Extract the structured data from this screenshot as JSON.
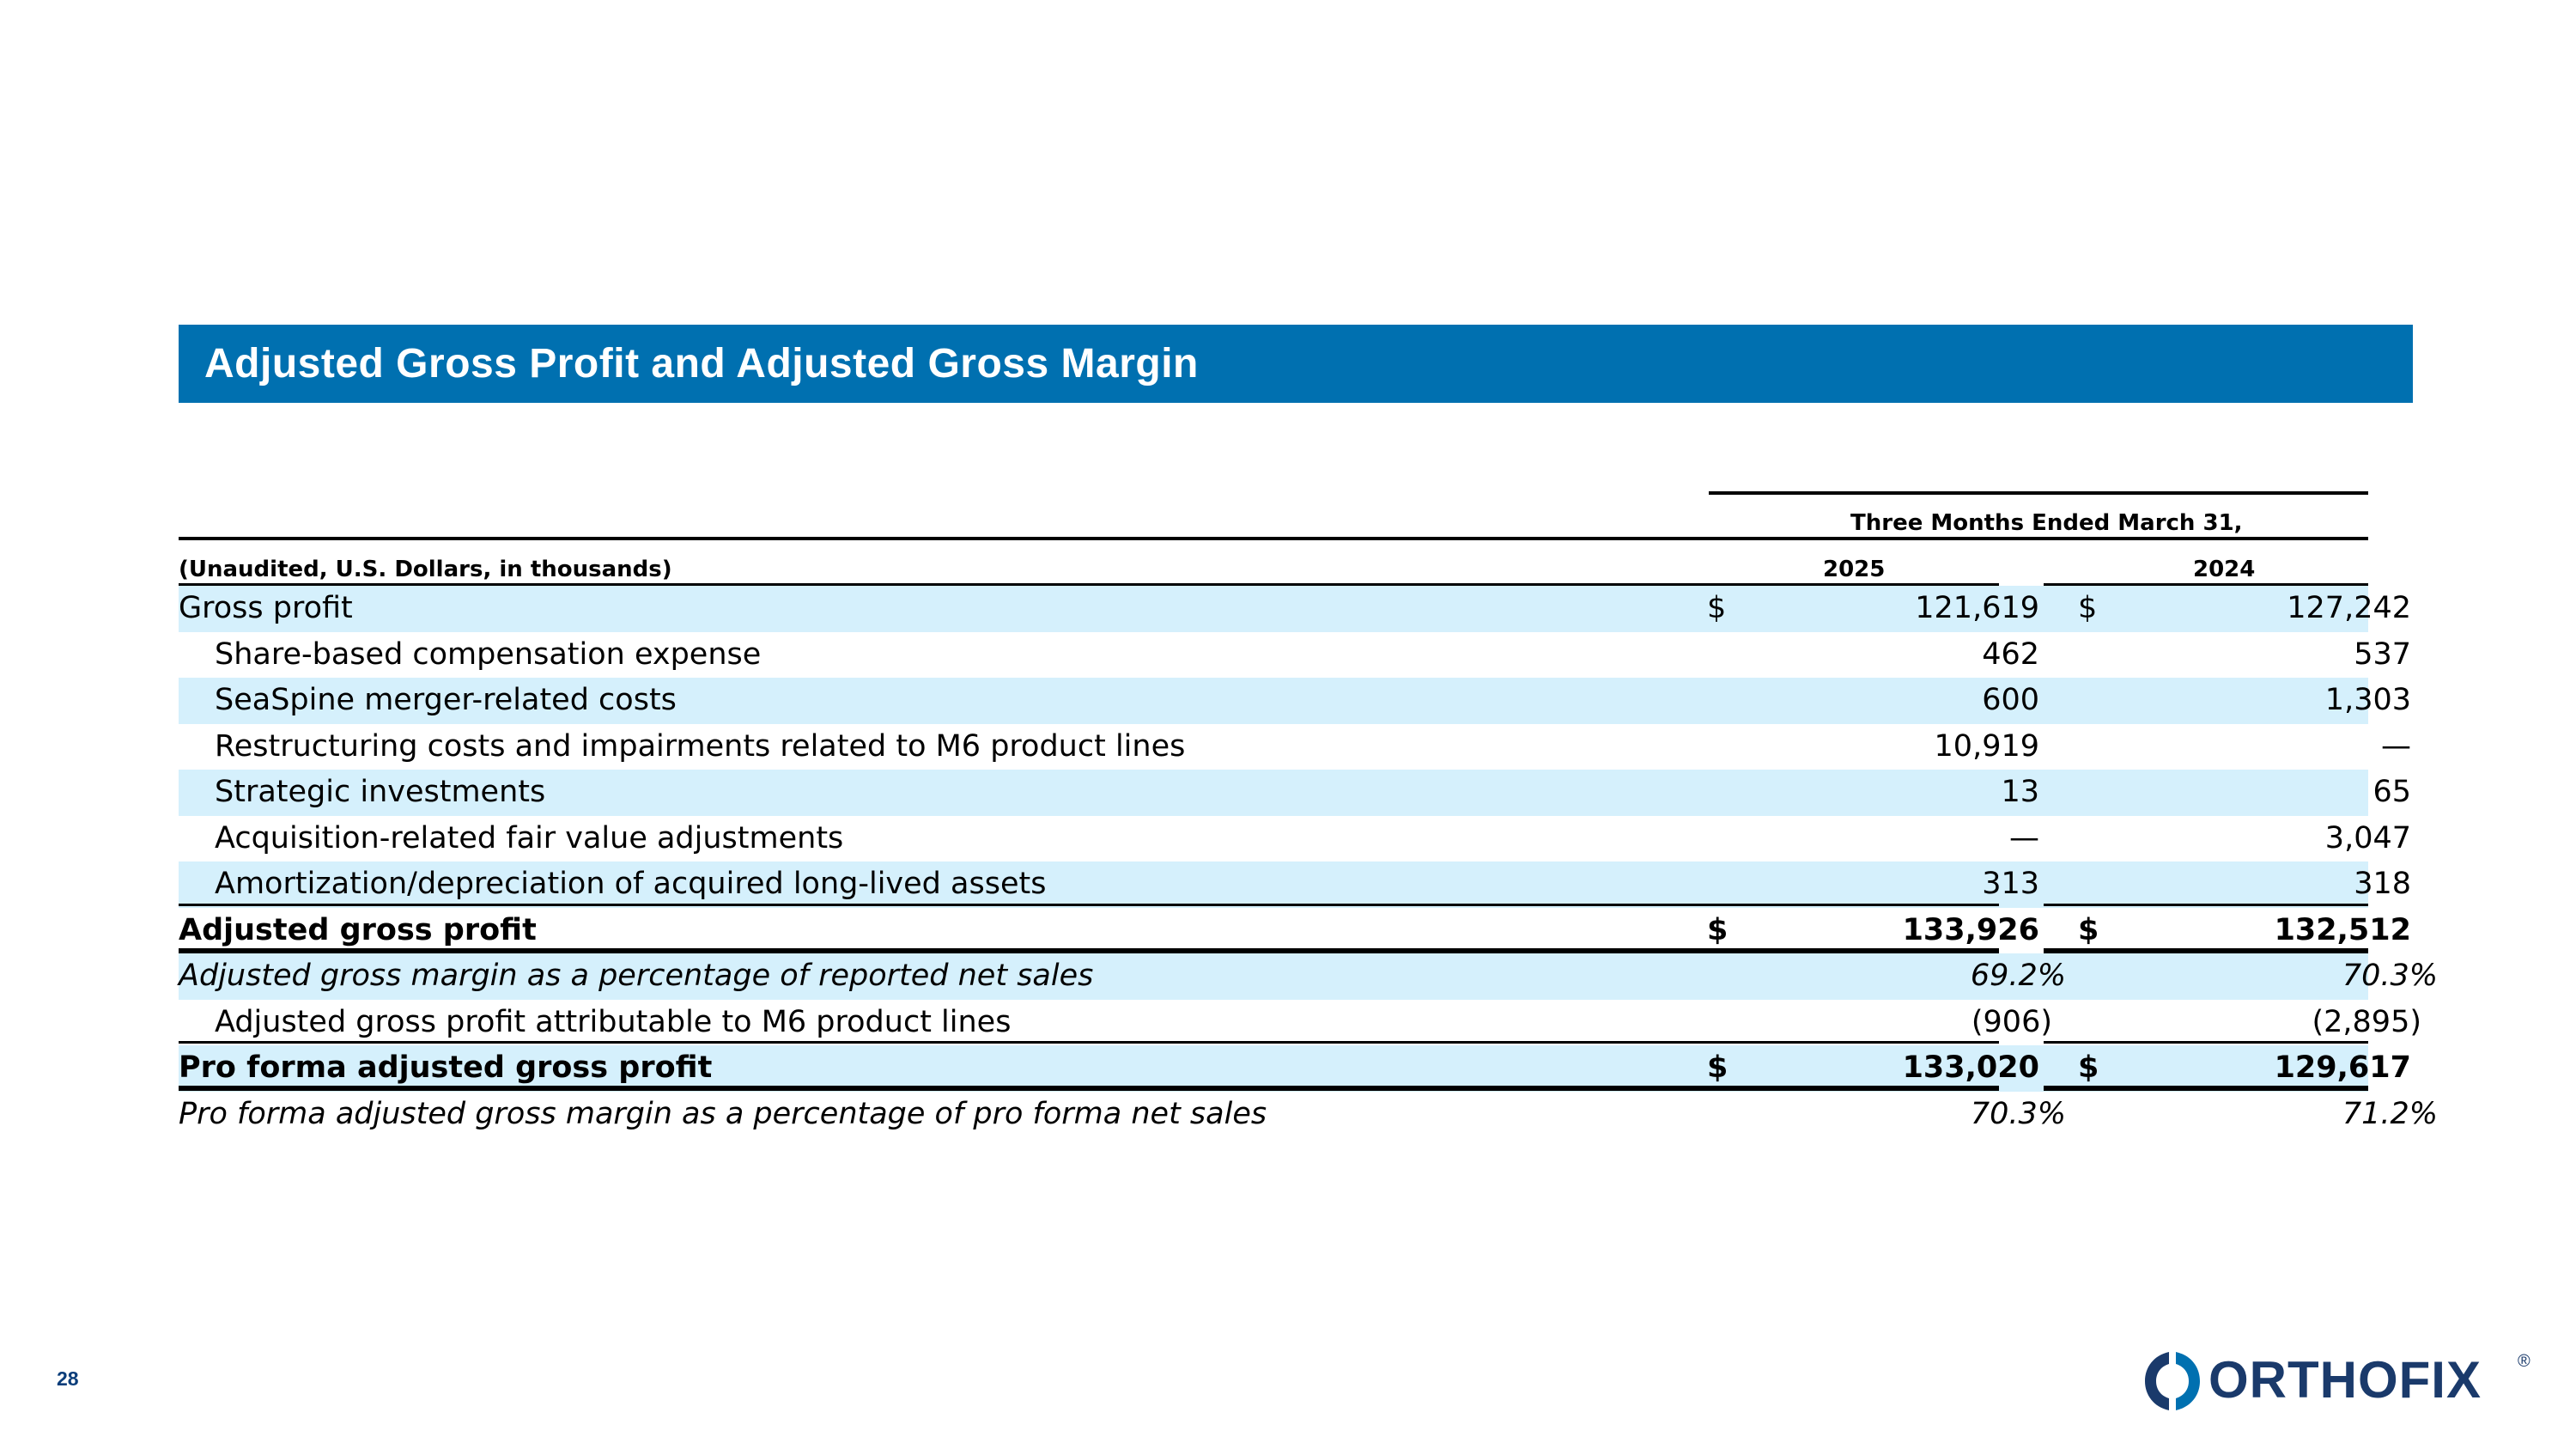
{
  "title": "Adjusted Gross Profit and Adjusted Gross Margin",
  "header": {
    "period": "Three Months Ended March 31,",
    "units": "(Unaudited, U.S. Dollars, in thousands)",
    "col1": "2025",
    "col2": "2024"
  },
  "rows": [
    {
      "label": "Gross profit",
      "cur1": "$",
      "v1": "121,619",
      "cur2": "$",
      "v2": "127,242"
    },
    {
      "label": "Share-based compensation expense",
      "v1": "462",
      "v2": "537"
    },
    {
      "label": "SeaSpine merger-related costs",
      "v1": "600",
      "v2": "1,303"
    },
    {
      "label": "Restructuring costs and impairments related to M6 product lines",
      "v1": "10,919",
      "v2": "—"
    },
    {
      "label": "Strategic investments",
      "v1": "13",
      "v2": "65"
    },
    {
      "label": "Acquisition-related fair value adjustments",
      "v1": "—",
      "v2": "3,047"
    },
    {
      "label": "Amortization/depreciation of acquired long-lived assets",
      "v1": "313",
      "v2": "318"
    },
    {
      "label": "Adjusted gross profit",
      "cur1": "$",
      "v1": "133,926",
      "cur2": "$",
      "v2": "132,512"
    },
    {
      "label": "Adjusted gross margin as a percentage of reported net sales",
      "v1": "69.2%",
      "v2": "70.3%"
    },
    {
      "label": "Adjusted gross profit attributable to M6 product lines",
      "v1": "(906)",
      "v2": "(2,895)"
    },
    {
      "label": "Pro forma adjusted gross profit",
      "cur1": "$",
      "v1": "133,020",
      "cur2": "$",
      "v2": "129,617"
    },
    {
      "label": "Pro forma adjusted gross margin as a percentage of pro forma net sales",
      "v1": "70.3%",
      "v2": "71.2%"
    }
  ],
  "page_number": "28",
  "logo": {
    "text": "ORTHOFIX",
    "mark": "®"
  },
  "colors": {
    "title_bar": "#0070b0",
    "row_shade": "#d5f0fc",
    "logo": "#1a3a6b"
  }
}
